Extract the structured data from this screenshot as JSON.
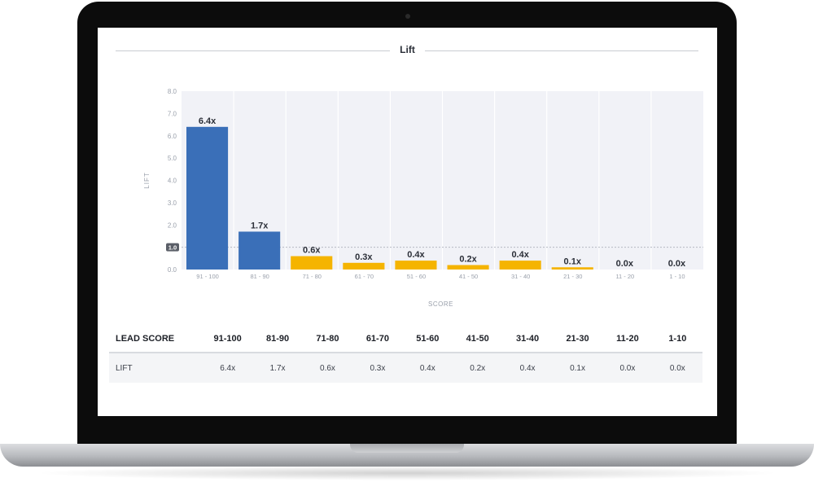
{
  "panel": {
    "title": "Lift"
  },
  "chart_data": {
    "type": "bar",
    "title": "Lift",
    "xlabel": "SCORE",
    "ylabel": "LIFT",
    "ylim": [
      0,
      8
    ],
    "yticks": [
      "0.0",
      "1.0",
      "2.0",
      "3.0",
      "4.0",
      "5.0",
      "6.0",
      "7.0",
      "8.0"
    ],
    "reference_line": {
      "value": 1.0,
      "label": "1.0"
    },
    "categories": [
      "91 - 100",
      "81 - 90",
      "71 - 80",
      "61 - 70",
      "51 - 60",
      "41 - 50",
      "31 - 40",
      "21 - 30",
      "11 - 20",
      "1 - 10"
    ],
    "values": [
      6.4,
      1.7,
      0.6,
      0.3,
      0.4,
      0.2,
      0.4,
      0.1,
      0.0,
      0.0
    ],
    "value_labels": [
      "6.4x",
      "1.7x",
      "0.6x",
      "0.3x",
      "0.4x",
      "0.2x",
      "0.4x",
      "0.1x",
      "0.0x",
      "0.0x"
    ],
    "colors": {
      "above": "#3a6fb8",
      "below": "#f5b400",
      "plot_bg": "#f1f2f7",
      "grid": "#ffffff"
    }
  },
  "table": {
    "header_label": "LEAD SCORE",
    "headers": [
      "91-100",
      "81-90",
      "71-80",
      "61-70",
      "51-60",
      "41-50",
      "31-40",
      "21-30",
      "11-20",
      "1-10"
    ],
    "row_label": "LIFT",
    "values": [
      "6.4x",
      "1.7x",
      "0.6x",
      "0.3x",
      "0.4x",
      "0.2x",
      "0.4x",
      "0.1x",
      "0.0x",
      "0.0x"
    ]
  }
}
